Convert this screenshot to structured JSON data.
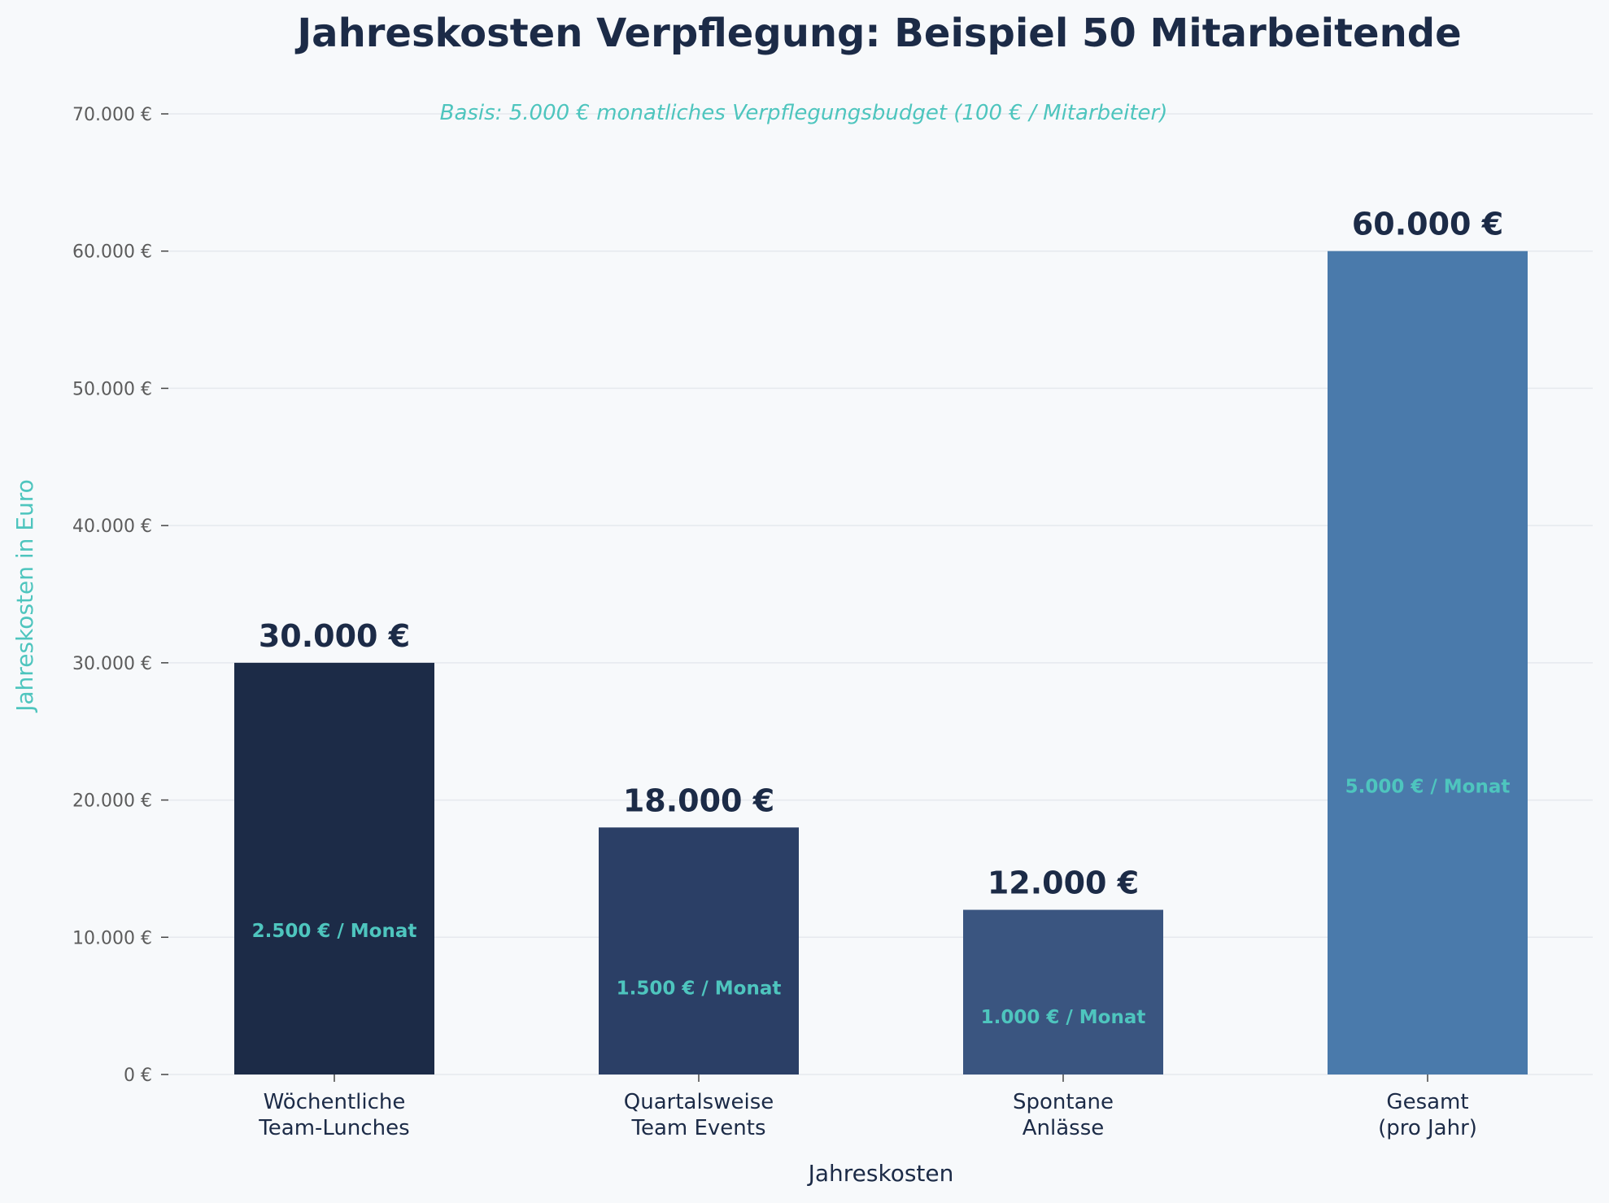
{
  "colors": {
    "background": "#f7f9fb",
    "title": "#1c2b47",
    "accent": "#4ec5be",
    "grid": "#e6e9ee",
    "tick": "#5c5c5c"
  },
  "chart_data": {
    "type": "bar",
    "title": "Jahreskosten Verpflegung: Beispiel 50 Mitarbeitende",
    "subtitle": "Basis: 5.000 € monatliches Verpflegungsbudget (100 € / Mitarbeiter)",
    "xlabel": "Jahreskosten",
    "ylabel": "Jahreskosten in Euro",
    "ylim": [
      0,
      70000
    ],
    "grid": true,
    "yticks": [
      {
        "value": 0,
        "label": "0 €"
      },
      {
        "value": 10000,
        "label": "10.000 €"
      },
      {
        "value": 20000,
        "label": "20.000 €"
      },
      {
        "value": 30000,
        "label": "30.000 €"
      },
      {
        "value": 40000,
        "label": "40.000 €"
      },
      {
        "value": 50000,
        "label": "50.000 €"
      },
      {
        "value": 60000,
        "label": "60.000 €"
      },
      {
        "value": 70000,
        "label": "70.000 €"
      }
    ],
    "bars": [
      {
        "category": [
          "Wöchentliche",
          "Team-Lunches"
        ],
        "value": 30000,
        "value_label": "30.000 €",
        "monthly_label": "2.500 € / Monat",
        "color": "#1c2b47"
      },
      {
        "category": [
          "Quartalsweise",
          "Team Events"
        ],
        "value": 18000,
        "value_label": "18.000 €",
        "monthly_label": "1.500 € / Monat",
        "color": "#2b3f66"
      },
      {
        "category": [
          "Spontane",
          "Anlässe"
        ],
        "value": 12000,
        "value_label": "12.000 €",
        "monthly_label": "1.000 € / Monat",
        "color": "#3a5580"
      },
      {
        "category": [
          "Gesamt",
          "(pro Jahr)"
        ],
        "value": 60000,
        "value_label": "60.000 €",
        "monthly_label": "5.000 € / Monat",
        "color": "#4a7aab"
      }
    ]
  }
}
